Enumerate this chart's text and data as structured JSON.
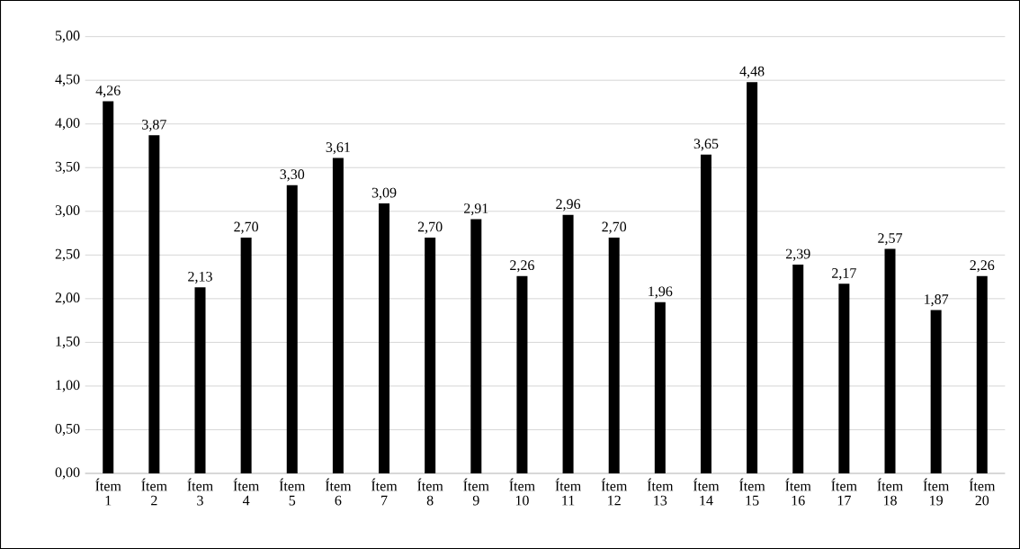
{
  "chart_data": {
    "type": "bar",
    "categories": [
      "Ítem 1",
      "Ítem 2",
      "Ítem 3",
      "Ítem 4",
      "Ítem 5",
      "Ítem 6",
      "Ítem 7",
      "Ítem 8",
      "Ítem 9",
      "Ítem 10",
      "Ítem 11",
      "Ítem 12",
      "Ítem 13",
      "Ítem 14",
      "Ítem 15",
      "Ítem 16",
      "Ítem 17",
      "Ítem 18",
      "Ítem 19",
      "Ítem 20"
    ],
    "values": [
      4.26,
      3.87,
      2.13,
      2.7,
      3.3,
      3.61,
      3.09,
      2.7,
      2.91,
      2.26,
      2.96,
      2.7,
      1.96,
      3.65,
      4.48,
      2.39,
      2.17,
      2.57,
      1.87,
      2.26
    ],
    "value_labels": [
      "4,26",
      "3,87",
      "2,13",
      "2,70",
      "3,30",
      "3,61",
      "3,09",
      "2,70",
      "2,91",
      "2,26",
      "2,96",
      "2,70",
      "1,96",
      "3,65",
      "4,48",
      "2,39",
      "2,17",
      "2,57",
      "1,87",
      "2,26"
    ],
    "color": "#000000",
    "ylim": [
      0,
      5
    ],
    "yticks": [
      {
        "value": 0,
        "label": "0,00"
      },
      {
        "value": 0.5,
        "label": "0,50"
      },
      {
        "value": 1,
        "label": "1,00"
      },
      {
        "value": 1.5,
        "label": "1,50"
      },
      {
        "value": 2,
        "label": "2,00"
      },
      {
        "value": 2.5,
        "label": "2,50"
      },
      {
        "value": 3,
        "label": "3,00"
      },
      {
        "value": 3.5,
        "label": "3,50"
      },
      {
        "value": 4,
        "label": "4,00"
      },
      {
        "value": 4.5,
        "label": "4,50"
      },
      {
        "value": 5,
        "label": "5,00"
      }
    ],
    "grid": "y"
  }
}
